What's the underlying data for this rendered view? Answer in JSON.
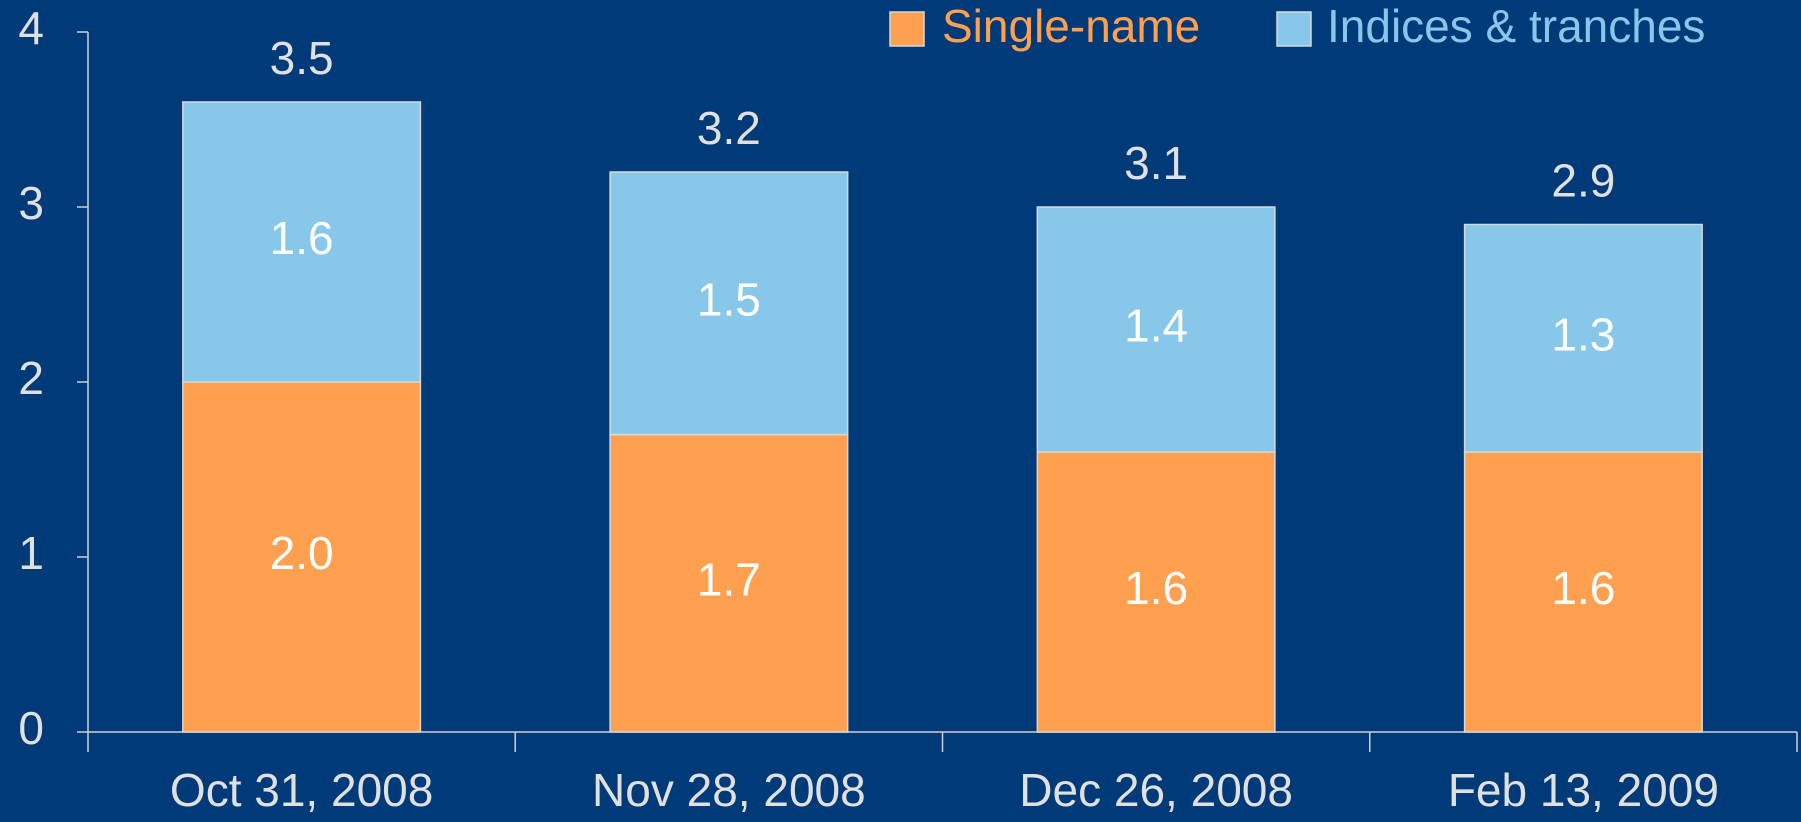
{
  "chart_data": {
    "type": "stacked_bar",
    "categories": [
      "Oct 31, 2008",
      "Nov 28, 2008",
      "Dec 26, 2008",
      "Feb 13, 2009"
    ],
    "series": [
      {
        "name": "Single-name",
        "color": "#ffa050",
        "values": [
          2.0,
          1.7,
          1.6,
          1.6
        ],
        "value_labels": [
          "2.0",
          "1.7",
          "1.6",
          "1.6"
        ]
      },
      {
        "name": "Indices & tranches",
        "color": "#87c8ea",
        "values": [
          1.6,
          1.5,
          1.4,
          1.3
        ]
      }
    ],
    "totals": [
      3.5,
      3.2,
      3.1,
      2.9
    ],
    "ylim": [
      0,
      4
    ],
    "yticks": [
      0,
      1,
      2,
      3,
      4
    ],
    "legend": "top-right"
  }
}
